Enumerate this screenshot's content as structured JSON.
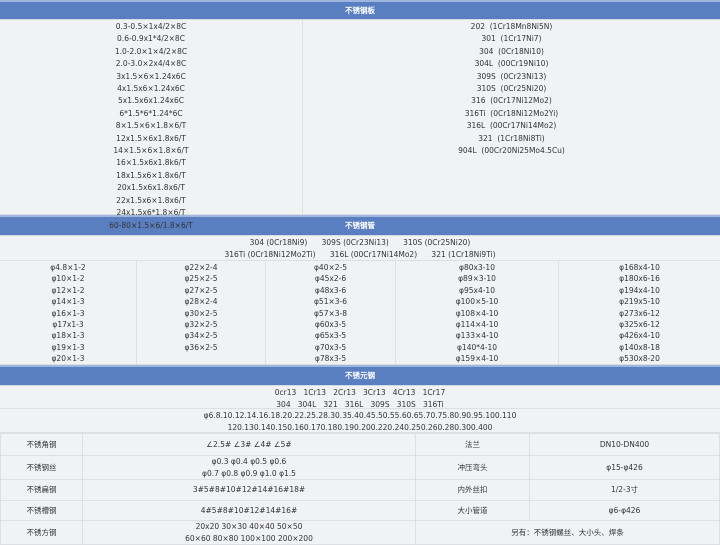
{
  "plate": {
    "title": "不锈钢板",
    "sizes": [
      "0.3-0.5×1x4/2×8C",
      "0.6-0.9x1*4/2×8C",
      "1.0-2.0×1×4/2×8C",
      "2.0-3.0×2x4/4×8C",
      "3x1.5×6×1.24x6C",
      "4x1.5x6×1.24x6C",
      "5x1.5x6x1.24x6C",
      "6*1.5*6*1.24*6C",
      "8×1.5×6×1.8×6/T",
      "12x1.5×6x1.8x6/T",
      "14×1.5×6×1.8×6/T",
      "16×1.5x6x1.8k6/T",
      "18x1.5x6×1.8x6/T",
      "20x1.5x6x1.8x6/T",
      "22x1.5x6×1.8x6/T",
      "24x1.5x6*1.8×6/T",
      "60-80×1.5×6/1.8×6/T"
    ],
    "grades": [
      "202  (1Cr18Mn8Ni5N)",
      "301  (1Cr17Ni7)",
      "304  (0Cr18Ni10)",
      "304L  (00Cr19Ni10)",
      "309S  (0Cr23Ni13)",
      "310S  (0Cr25Ni20)",
      "316  (0Cr17Ni12Mo2)",
      "316Ti  (0Cr18Ni12Mo2Yi)",
      "316L  (00Cr17Ni14Mo2)",
      "321  (1Cr18Ni8Ti)",
      "904L  (00Cr20Ni25Mo4.5Cu)"
    ]
  },
  "pipe": {
    "title": "不锈钢管",
    "grades": [
      "304 (0Cr18Ni9)      309S (0Cr23Ni13)      310S (0Cr25Ni20)",
      "316Ti (0Cr18Ni12Mo2Ti)      316L (00Cr17Ni14Mo2)      321 (1Cr18Ni9Ti)"
    ],
    "columns": [
      [
        "φ4.8×1-2",
        "φ10×1-2",
        "φ12×1-2",
        "φ14×1-3",
        "φ16×1-3",
        "φ17x1-3",
        "φ18×1-3",
        "φ19×1-3",
        "φ20×1-3"
      ],
      [
        "φ22×2-4",
        "φ25×2-5",
        "φ27×2-5",
        "φ28×2-4",
        "φ30×2-5",
        "φ32×2-5",
        "φ34×2-5",
        "φ36×2-5"
      ],
      [
        "φ40×2-5",
        "φ45x2-6",
        "φ48x3-6",
        "φ51×3-6",
        "φ57×3-8",
        "φ60x3-5",
        "φ65x3-5",
        "φ70x3-5",
        "φ78x3-5"
      ],
      [
        "φ80x3-10",
        "φ89×3-10",
        "φ95x4-10",
        "φ100×5-10",
        "φ108×4-10",
        "φ114×4-10",
        "φ133×4-10",
        "φ140*4-10",
        "φ159×4-10"
      ],
      [
        "φ168x4-10",
        "φ180x6-16",
        "φ194x4-10",
        "φ219x5-10",
        "φ273x6-12",
        "φ325x6-12",
        "φ426x4-10",
        "φ140x8-18",
        "φ530x8-20"
      ]
    ]
  },
  "bar": {
    "title": "不锈元钢",
    "grades": [
      "0cr13   1Cr13   2Cr13   3Cr13   4Cr13   1Cr17",
      "304   304L   321   316L   309S   310S   316Ti"
    ],
    "sizes": [
      "φ6.8.10.12.14.16.18.20.22.25.28.30.35.40.45.50.55.60.65.70.75.80.90.95.100.110",
      "120.130.140.150.160.170.180.190.200.220.240.250.260.280.300.400"
    ]
  },
  "table": {
    "angle": {
      "label": "不锈角钢",
      "value": "∠2.5#   ∠3#   ∠4#   ∠5#"
    },
    "wire": {
      "label": "不锈钢丝",
      "value1": "φ0.3   φ0.4   φ0.5   φ0.6",
      "value2": "φ0.7   φ0.8   φ0.9   φ1.0   φ1.5"
    },
    "flat": {
      "label": "不锈扁钢",
      "value": "3#5#8#10#12#14#16#18#"
    },
    "channel": {
      "label": "不锈槽钢",
      "value": "4#5#8#10#12#14#16#"
    },
    "square": {
      "label": "不锈方钢",
      "value1": "20x20   30×30   40×40   50×50",
      "value2": "60×60   80×80   100×100   200×200"
    },
    "flange": {
      "label": "法兰",
      "value": "DN10-DN400"
    },
    "elbow": {
      "label": "冲压弯头",
      "value": "φ15-φ426"
    },
    "thread": {
      "label": "内外丝扣",
      "value": "1/2-3寸"
    },
    "reducer": {
      "label": "大小管道",
      "value": "φ6-φ426"
    },
    "note": "另有：不锈钢螺丝、大小头、焊条"
  }
}
